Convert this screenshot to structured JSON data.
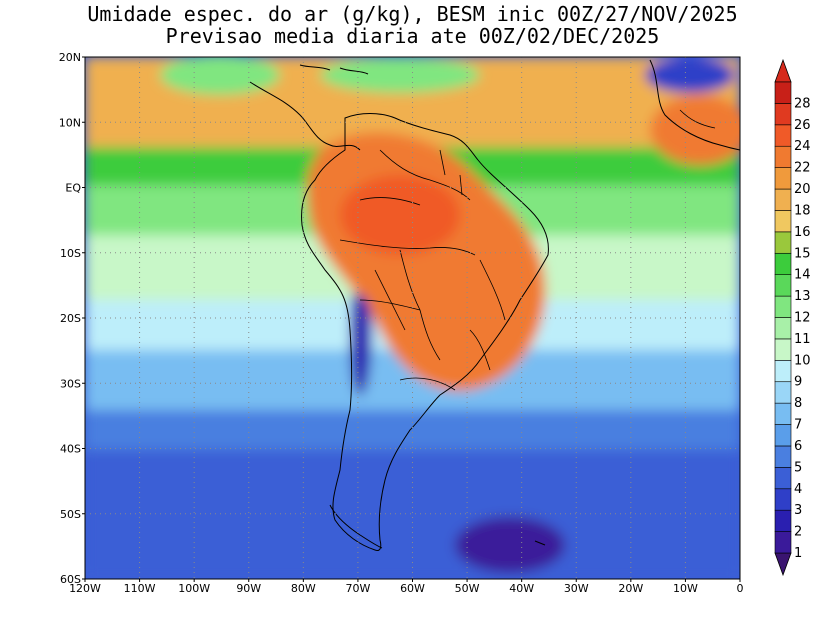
{
  "title": {
    "line1": "Umidade espec. do ar (g/kg), BESM inic 00Z/27/NOV/2025",
    "line2": "Previsao media diaria ate 00Z/02/DEC/2025"
  },
  "axes": {
    "lat_labels": [
      "20N",
      "10N",
      "EQ",
      "10S",
      "20S",
      "30S",
      "40S",
      "50S",
      "60S"
    ],
    "lon_labels": [
      "120W",
      "110W",
      "100W",
      "90W",
      "80W",
      "70W",
      "60W",
      "50W",
      "40W",
      "30W",
      "20W",
      "10W",
      "0"
    ]
  },
  "colorbar": {
    "labels": [
      "1",
      "2",
      "3",
      "4",
      "5",
      "6",
      "7",
      "8",
      "9",
      "10",
      "11",
      "12",
      "13",
      "14",
      "15",
      "16",
      "18",
      "20",
      "22",
      "24",
      "26",
      "28"
    ],
    "colors": [
      "#3a1a9a",
      "#2a1fb0",
      "#2f3fc8",
      "#3b5fd6",
      "#4a7fe0",
      "#5a9eea",
      "#78bdf2",
      "#9ad6f7",
      "#bdeefa",
      "#c8f7c8",
      "#a8f0a8",
      "#80e680",
      "#5ad85a",
      "#3ccc3c",
      "#9ac83c",
      "#f0c860",
      "#f0b050",
      "#f09a3c",
      "#f07a30",
      "#f05a28",
      "#e03a20",
      "#c82018"
    ],
    "top_arrow_color": "#d62a1c",
    "bottom_arrow_color": "#3a1470"
  },
  "map": {
    "grid": "dotted",
    "colors": {
      "wet": "#f07a30",
      "humid": "#f0b050",
      "mid": "#5ad85a",
      "light": "#c8f7c8",
      "cool": "#9ad6f7",
      "cold": "#4a7fe0",
      "colder": "#2f3fc8",
      "driest": "#3a1a9a"
    }
  }
}
